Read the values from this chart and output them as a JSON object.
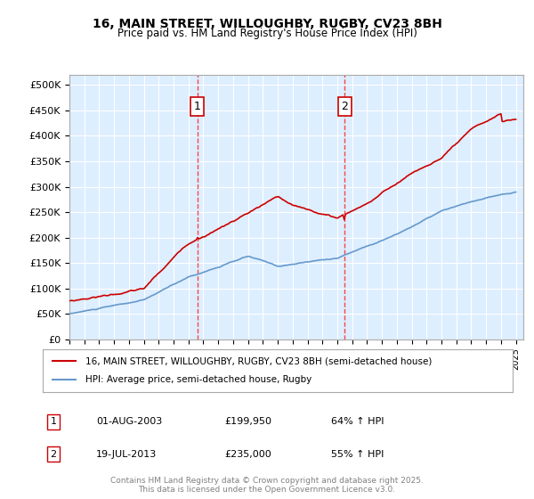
{
  "title": "16, MAIN STREET, WILLOUGHBY, RUGBY, CV23 8BH",
  "subtitle": "Price paid vs. HM Land Registry's House Price Index (HPI)",
  "legend_line1": "16, MAIN STREET, WILLOUGHBY, RUGBY, CV23 8BH (semi-detached house)",
  "legend_line2": "HPI: Average price, semi-detached house, Rugby",
  "footer": "Contains HM Land Registry data © Crown copyright and database right 2025.\nThis data is licensed under the Open Government Licence v3.0.",
  "sale1_date": "01-AUG-2003",
  "sale1_price": 199950,
  "sale1_label": "64% ↑ HPI",
  "sale2_date": "19-JUL-2013",
  "sale2_price": 235000,
  "sale2_label": "55% ↑ HPI",
  "red_color": "#cc0000",
  "blue_color": "#6699cc",
  "sale_marker_color": "#cc0000",
  "vline_color": "#ff4444",
  "background_color": "#ddeeff",
  "ylim": [
    0,
    520000
  ],
  "yticks": [
    0,
    50000,
    100000,
    150000,
    200000,
    250000,
    300000,
    350000,
    400000,
    450000,
    500000
  ],
  "start_year": 1995,
  "end_year": 2025
}
